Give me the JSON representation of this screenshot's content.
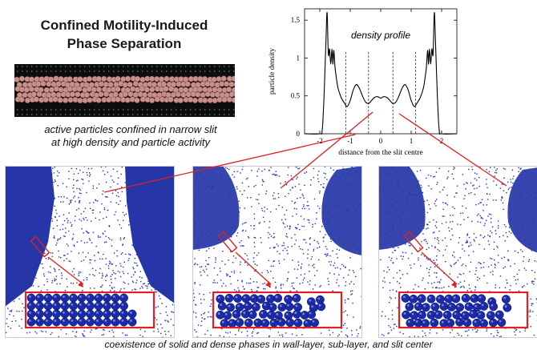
{
  "title": {
    "line1": "Confined Motility-Induced",
    "line2": "Phase Separation"
  },
  "strip_caption": {
    "line1": "active particles confined in narrow slit",
    "line2": "at high density and particle activity"
  },
  "footer_caption": "coexistence of solid and dense phases in wall-layer, sub-layer, and slit center",
  "colors": {
    "particle": "#1f2ebf",
    "highlight": "#e02020",
    "strip_particles": "#c98f8a",
    "strip_bg": "#0d0d0d",
    "dark_phase": "#2636a8"
  },
  "chart_data": {
    "type": "line",
    "title": "density profile",
    "xlabel": "distance from the slit centre",
    "ylabel": "particle density",
    "xlim": [
      -2.5,
      2.5
    ],
    "ylim": [
      0,
      1.65
    ],
    "xticks": [
      -2,
      -1,
      0,
      1,
      2
    ],
    "yticks": [
      0,
      0.5,
      1,
      1.5
    ],
    "xtick_labels": [
      "-2",
      "-1",
      "0",
      "1",
      "2"
    ],
    "ytick_labels": [
      "0",
      "0.5",
      "1",
      "1.5"
    ],
    "divider_lines": [
      -1.15,
      -0.4,
      0.4,
      1.15
    ],
    "series": [
      {
        "x": [
          -2.5,
          -2.0,
          -1.92,
          -1.86,
          -1.8,
          -1.76,
          -1.72,
          -1.68,
          -1.64,
          -1.6,
          -1.57,
          -1.54,
          -1.5,
          -1.45,
          -1.4,
          -1.3,
          -1.2,
          -1.1,
          -1.0,
          -0.9,
          -0.8,
          -0.7,
          -0.6,
          -0.5,
          -0.4,
          -0.3,
          -0.2,
          -0.1,
          0,
          0.1,
          0.2,
          0.3,
          0.4,
          0.5,
          0.6,
          0.7,
          0.8,
          0.9,
          1.0,
          1.1,
          1.2,
          1.3,
          1.4,
          1.45,
          1.5,
          1.54,
          1.57,
          1.6,
          1.64,
          1.68,
          1.72,
          1.76,
          1.8,
          1.86,
          1.92,
          2.0,
          2.5
        ],
        "y": [
          0,
          0,
          0.05,
          0.5,
          1.2,
          1.6,
          1.05,
          1.12,
          0.92,
          1.12,
          0.92,
          1.1,
          0.88,
          0.72,
          0.6,
          0.48,
          0.41,
          0.36,
          0.44,
          0.58,
          0.65,
          0.6,
          0.5,
          0.42,
          0.4,
          0.44,
          0.48,
          0.49,
          0.47,
          0.49,
          0.48,
          0.44,
          0.4,
          0.42,
          0.5,
          0.6,
          0.65,
          0.58,
          0.44,
          0.36,
          0.41,
          0.48,
          0.6,
          0.72,
          0.88,
          1.1,
          0.92,
          1.12,
          0.92,
          1.12,
          1.05,
          1.6,
          1.2,
          0.5,
          0.05,
          0,
          0
        ]
      }
    ]
  }
}
